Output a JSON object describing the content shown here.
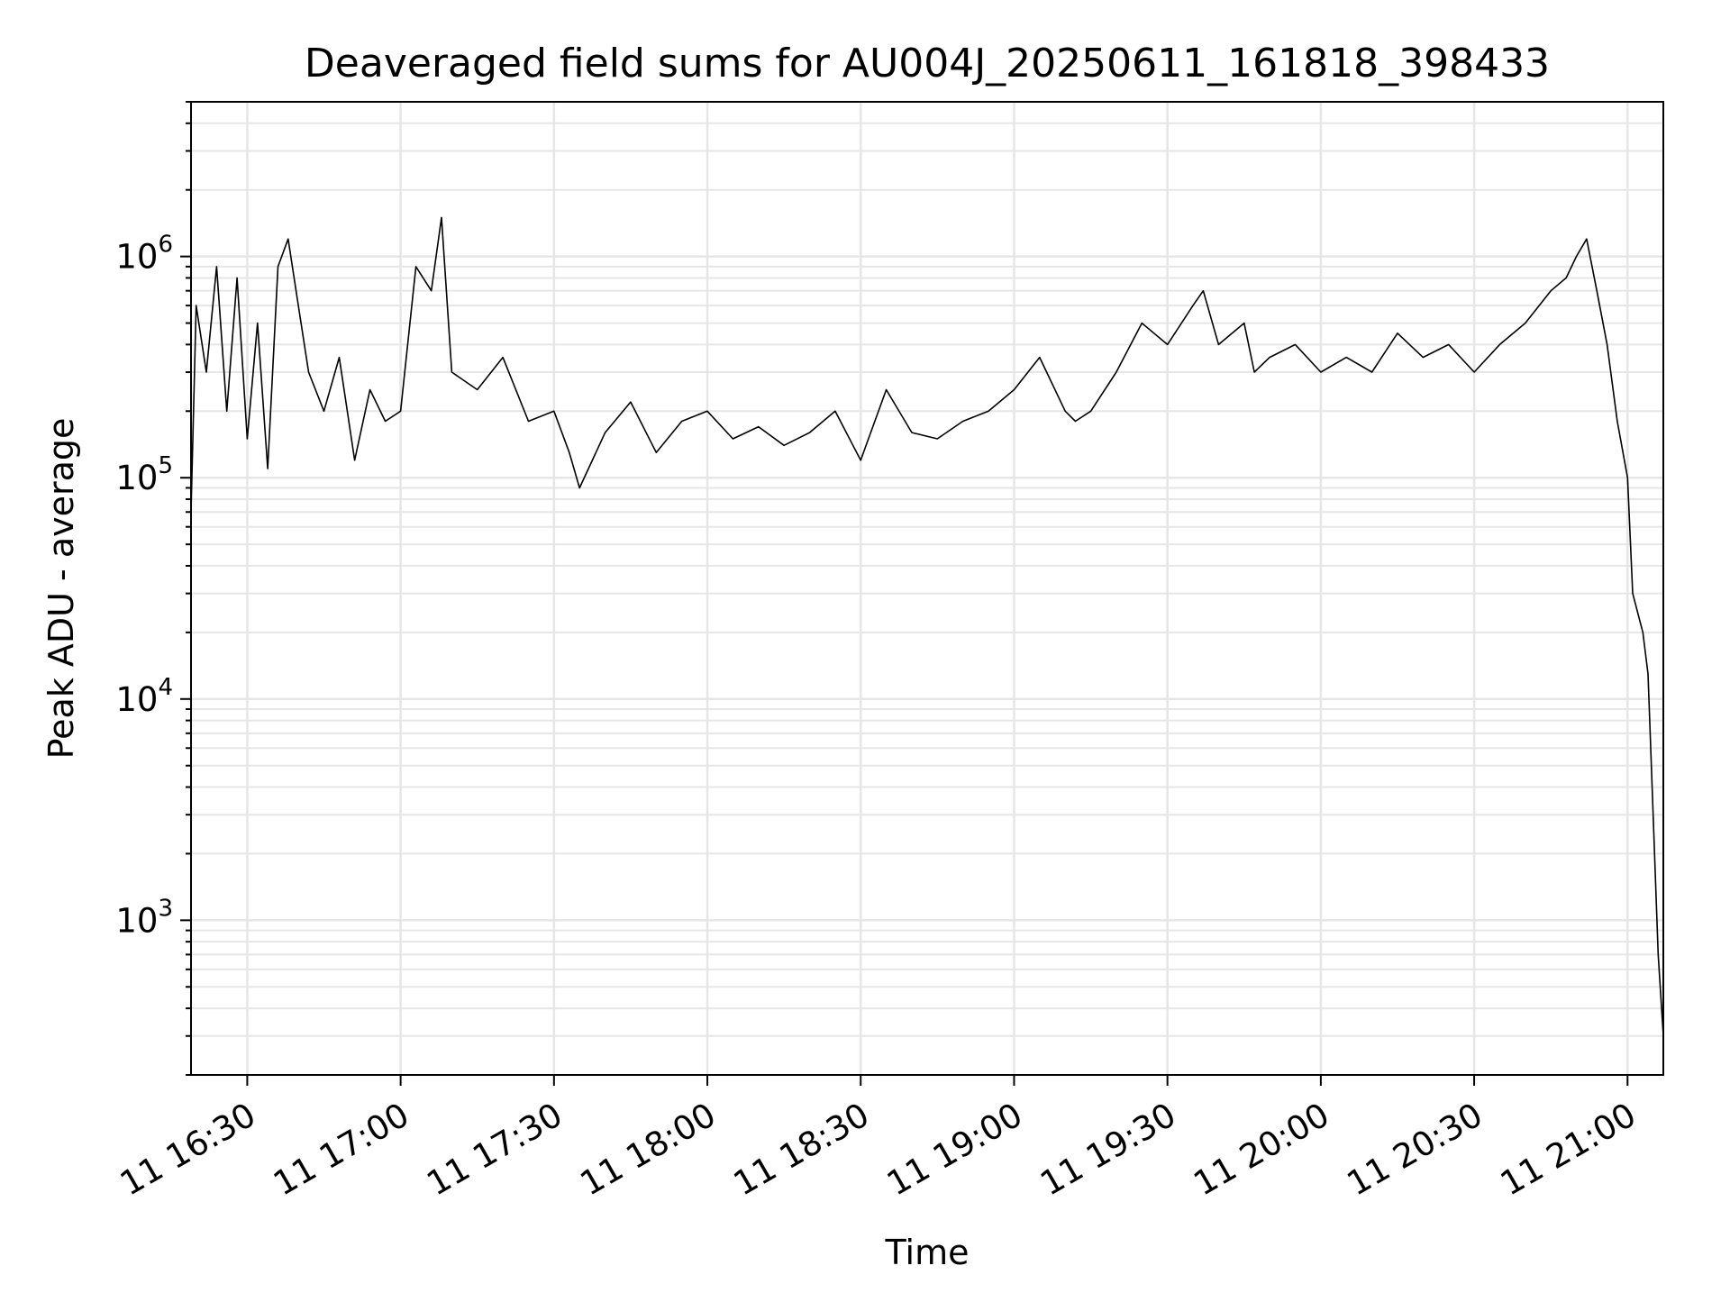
{
  "chart_data": {
    "type": "line",
    "title": "Deaveraged field sums for AU004J_20250611_161818_398433",
    "xlabel": "Time",
    "ylabel": "Peak ADU - average",
    "yscale": "log",
    "xlim": [
      "2025-06-11 16:19",
      "2025-06-11 21:07"
    ],
    "ylim": [
      200,
      5000000
    ],
    "grid": true,
    "line_color": "#000000",
    "grid_color": "#e6e6e6",
    "x_ticks": [
      {
        "label": "11 16:30",
        "value": "2025-06-11 16:30"
      },
      {
        "label": "11 17:00",
        "value": "2025-06-11 17:00"
      },
      {
        "label": "11 17:30",
        "value": "2025-06-11 17:30"
      },
      {
        "label": "11 18:00",
        "value": "2025-06-11 18:00"
      },
      {
        "label": "11 18:30",
        "value": "2025-06-11 18:30"
      },
      {
        "label": "11 19:00",
        "value": "2025-06-11 19:00"
      },
      {
        "label": "11 19:30",
        "value": "2025-06-11 19:30"
      },
      {
        "label": "11 20:00",
        "value": "2025-06-11 20:00"
      },
      {
        "label": "11 20:30",
        "value": "2025-06-11 20:30"
      },
      {
        "label": "11 21:00",
        "value": "2025-06-11 21:00"
      }
    ],
    "y_ticks": [
      {
        "base": "10",
        "exp": "3",
        "value": 1000
      },
      {
        "base": "10",
        "exp": "4",
        "value": 10000
      },
      {
        "base": "10",
        "exp": "5",
        "value": 100000
      },
      {
        "base": "10",
        "exp": "6",
        "value": 1000000
      }
    ],
    "series": [
      {
        "x": [
          "2025-06-11 16:19",
          "2025-06-11 16:20",
          "2025-06-11 16:22",
          "2025-06-11 16:24",
          "2025-06-11 16:26",
          "2025-06-11 16:28",
          "2025-06-11 16:30",
          "2025-06-11 16:32",
          "2025-06-11 16:34",
          "2025-06-11 16:36",
          "2025-06-11 16:38",
          "2025-06-11 16:40",
          "2025-06-11 16:42",
          "2025-06-11 16:45",
          "2025-06-11 16:48",
          "2025-06-11 16:51",
          "2025-06-11 16:54",
          "2025-06-11 16:57",
          "2025-06-11 17:00",
          "2025-06-11 17:03",
          "2025-06-11 17:06",
          "2025-06-11 17:08",
          "2025-06-11 17:10",
          "2025-06-11 17:15",
          "2025-06-11 17:20",
          "2025-06-11 17:25",
          "2025-06-11 17:30",
          "2025-06-11 17:33",
          "2025-06-11 17:35",
          "2025-06-11 17:40",
          "2025-06-11 17:45",
          "2025-06-11 17:50",
          "2025-06-11 17:55",
          "2025-06-11 18:00",
          "2025-06-11 18:05",
          "2025-06-11 18:10",
          "2025-06-11 18:15",
          "2025-06-11 18:20",
          "2025-06-11 18:25",
          "2025-06-11 18:30",
          "2025-06-11 18:35",
          "2025-06-11 18:40",
          "2025-06-11 18:45",
          "2025-06-11 18:50",
          "2025-06-11 18:55",
          "2025-06-11 19:00",
          "2025-06-11 19:05",
          "2025-06-11 19:10",
          "2025-06-11 19:12",
          "2025-06-11 19:15",
          "2025-06-11 19:20",
          "2025-06-11 19:25",
          "2025-06-11 19:30",
          "2025-06-11 19:35",
          "2025-06-11 19:37",
          "2025-06-11 19:40",
          "2025-06-11 19:45",
          "2025-06-11 19:47",
          "2025-06-11 19:50",
          "2025-06-11 19:55",
          "2025-06-11 20:00",
          "2025-06-11 20:05",
          "2025-06-11 20:10",
          "2025-06-11 20:15",
          "2025-06-11 20:20",
          "2025-06-11 20:25",
          "2025-06-11 20:30",
          "2025-06-11 20:35",
          "2025-06-11 20:40",
          "2025-06-11 20:45",
          "2025-06-11 20:48",
          "2025-06-11 20:50",
          "2025-06-11 20:52",
          "2025-06-11 20:54",
          "2025-06-11 20:56",
          "2025-06-11 20:58",
          "2025-06-11 21:00",
          "2025-06-11 21:01",
          "2025-06-11 21:03",
          "2025-06-11 21:04",
          "2025-06-11 21:05",
          "2025-06-11 21:06",
          "2025-06-11 21:07"
        ],
        "y": [
          70000,
          600000,
          300000,
          900000,
          200000,
          800000,
          150000,
          500000,
          110000,
          900000,
          1200000,
          600000,
          300000,
          200000,
          350000,
          120000,
          250000,
          180000,
          200000,
          900000,
          700000,
          1500000,
          300000,
          250000,
          350000,
          180000,
          200000,
          130000,
          90000,
          160000,
          220000,
          130000,
          180000,
          200000,
          150000,
          170000,
          140000,
          160000,
          200000,
          120000,
          250000,
          160000,
          150000,
          180000,
          200000,
          250000,
          350000,
          200000,
          180000,
          200000,
          300000,
          500000,
          400000,
          600000,
          700000,
          400000,
          500000,
          300000,
          350000,
          400000,
          300000,
          350000,
          300000,
          450000,
          350000,
          400000,
          300000,
          400000,
          500000,
          700000,
          800000,
          1000000,
          1200000,
          700000,
          400000,
          180000,
          100000,
          30000,
          20000,
          13000,
          3000,
          700,
          300
        ]
      }
    ]
  }
}
